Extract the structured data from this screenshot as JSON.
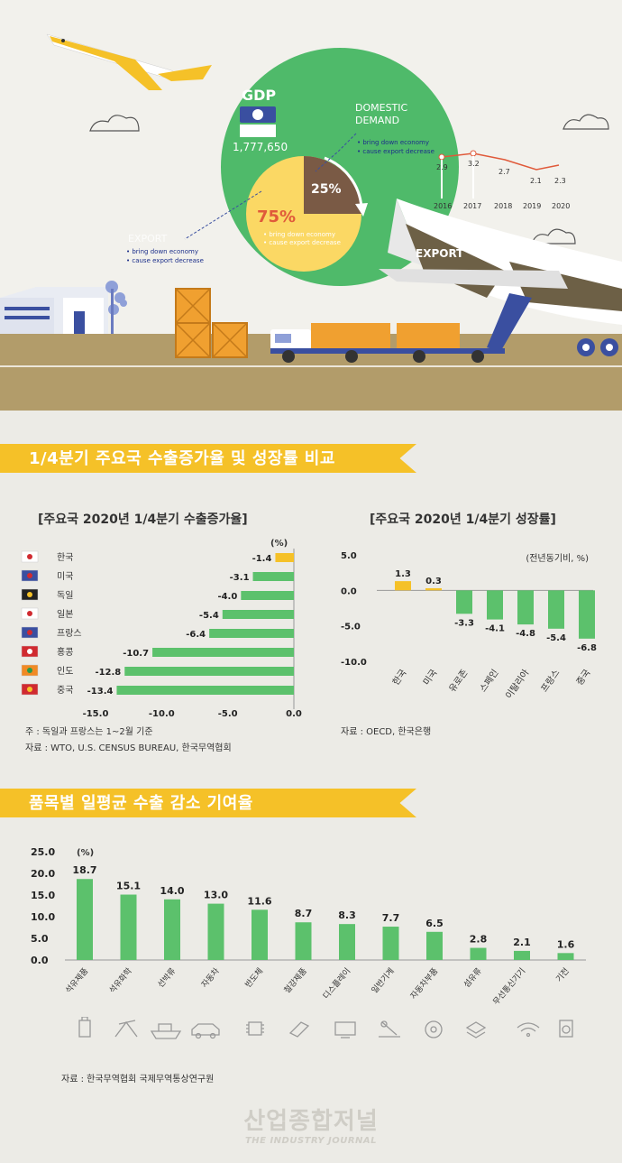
{
  "hero": {
    "gdp_label": "GDP",
    "gdp_value": "1,777,650",
    "domestic_title_1": "DOMESTIC",
    "domestic_title_2": "DEMAND",
    "domestic_bullet_1": "bring down economy",
    "domestic_bullet_2": "cause export decrease",
    "pct_small": "25%",
    "pct_big": "75%",
    "inner_bullet_1": "bring down economy",
    "inner_bullet_2": "cause export decrease",
    "export_left_label": "EXPORT",
    "export_left_bullet_1": "bring down economy",
    "export_left_bullet_2": "cause export decrease",
    "export_right_label": "EXPORT",
    "mini_chart": {
      "years": [
        "2016",
        "2017",
        "2018",
        "2019",
        "2020"
      ],
      "values": [
        2.9,
        3.2,
        2.7,
        2.1,
        2.3
      ],
      "labels": [
        "2.9",
        "3.2",
        "2.7",
        "2.1",
        "2.3"
      ]
    }
  },
  "section1": {
    "title": "1/4분기 주요국 수출증가율 및 성장률 비교"
  },
  "chart_data": [
    {
      "type": "bar",
      "orientation": "horizontal",
      "title": "[주요국 2020년 1/4분기 수출증가율]",
      "unit": "(%)",
      "categories": [
        "한국",
        "미국",
        "독일",
        "일본",
        "프랑스",
        "홍콩",
        "인도",
        "중국"
      ],
      "values": [
        -1.4,
        -3.1,
        -4.0,
        -5.4,
        -6.4,
        -10.7,
        -12.8,
        -13.4
      ],
      "value_labels": [
        "-1.4",
        "-3.1",
        "-4.0",
        "-5.4",
        "-6.4",
        "-10.7",
        "-12.8",
        "-13.4"
      ],
      "xlim": [
        -15,
        0
      ],
      "ticks": [
        "-15.0",
        "-10.0",
        "-5.0",
        "0.0"
      ],
      "highlight_color": "#f5c128",
      "bar_color": "#5cc16c",
      "notes": [
        "주 : 독일과 프랑스는 1~2월 기준",
        "자료 : WTO, U.S. CENSUS BUREAU, 한국무역협회"
      ]
    },
    {
      "type": "bar",
      "title": "[주요국 2020년 1/4분기 성장률]",
      "unit": "(전년동기비, %)",
      "categories": [
        "한국",
        "미국",
        "유로존",
        "스페인",
        "이탈리아",
        "프랑스",
        "중국"
      ],
      "values": [
        1.3,
        0.3,
        -3.3,
        -4.1,
        -4.8,
        -5.4,
        -6.8
      ],
      "value_labels": [
        "1.3",
        "0.3",
        "-3.3",
        "-4.1",
        "-4.8",
        "-5.4",
        "-6.8"
      ],
      "ylim": [
        -10,
        5
      ],
      "ticks": [
        "5.0",
        "0.0",
        "-5.0",
        "-10.0"
      ],
      "highlight_color": "#f5c128",
      "bar_color": "#5cc16c",
      "notes": [
        "자료 : OECD, 한국은행"
      ]
    },
    {
      "type": "bar",
      "title": "품목별 일평균 수출 감소 기여율",
      "unit": "(%)",
      "categories": [
        "석유제품",
        "석유화학",
        "선박류",
        "자동차",
        "반도체",
        "철강제품",
        "디스플레이",
        "일반기계",
        "자동차부품",
        "섬유류",
        "무선통신기기",
        "기전"
      ],
      "values": [
        18.7,
        15.1,
        14.0,
        13.0,
        11.6,
        8.7,
        8.3,
        7.7,
        6.5,
        2.8,
        2.1,
        1.6
      ],
      "value_labels": [
        "18.7",
        "15.1",
        "14.0",
        "13.0",
        "11.6",
        "8.7",
        "8.3",
        "7.7",
        "6.5",
        "2.8",
        "2.1",
        "1.6"
      ],
      "ylim": [
        0,
        25
      ],
      "ticks": [
        "25.0",
        "20.0",
        "15.0",
        "10.0",
        "5.0",
        "0.0"
      ],
      "bar_color": "#5cc16c",
      "notes": [
        "자료 : 한국무역협회 국제무역통상연구원"
      ]
    }
  ],
  "section2": {
    "title": "품목별 일평균 수출 감소 기여율"
  },
  "footer": {
    "logo_main": "산업종합저널",
    "logo_sub": "THE INDUSTRY JOURNAL"
  }
}
